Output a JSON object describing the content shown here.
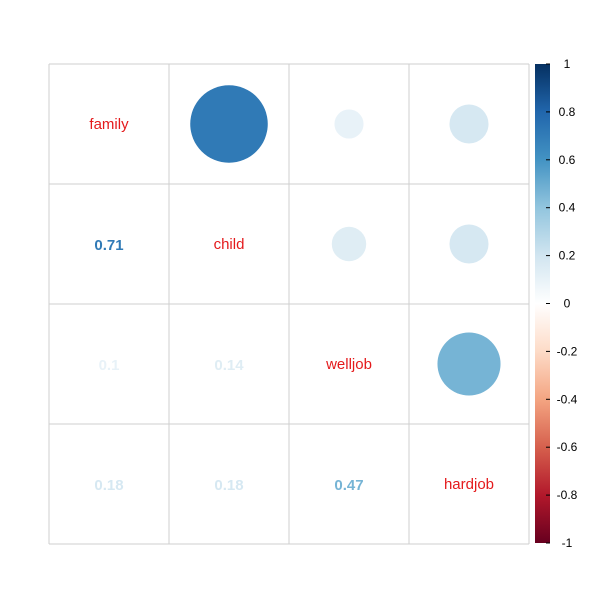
{
  "chart_data": {
    "type": "heatmap",
    "variables": [
      "family",
      "child",
      "welljob",
      "hardjob"
    ],
    "matrix": [
      [
        1.0,
        0.71,
        0.1,
        0.18
      ],
      [
        0.71,
        1.0,
        0.14,
        0.18
      ],
      [
        0.1,
        0.14,
        1.0,
        0.47
      ],
      [
        0.18,
        0.18,
        0.47,
        1.0
      ]
    ],
    "upper_method": "circle",
    "lower_method": "number",
    "diagonal": "variable-names",
    "lower_labels": [
      {
        "row": 1,
        "col": 0,
        "text": "0.71"
      },
      {
        "row": 2,
        "col": 0,
        "text": "0.1"
      },
      {
        "row": 2,
        "col": 1,
        "text": "0.14"
      },
      {
        "row": 3,
        "col": 0,
        "text": "0.18"
      },
      {
        "row": 3,
        "col": 1,
        "text": "0.18"
      },
      {
        "row": 3,
        "col": 2,
        "text": "0.47"
      }
    ],
    "colorbar": {
      "range": [
        -1,
        1
      ],
      "ticks": [
        "1",
        "0.8",
        "0.6",
        "0.4",
        "0.2",
        "0",
        "-0.2",
        "-0.4",
        "-0.6",
        "-0.8",
        "-1"
      ],
      "placement": "right"
    },
    "label_color": "#e41a1c",
    "palette": [
      "#67001F",
      "#B2182B",
      "#D6604D",
      "#F4A582",
      "#FDDBC7",
      "#FFFFFF",
      "#D1E5F0",
      "#92C5DE",
      "#4393C3",
      "#2166AC",
      "#053061"
    ],
    "grid_color": "#cfcfcf"
  }
}
